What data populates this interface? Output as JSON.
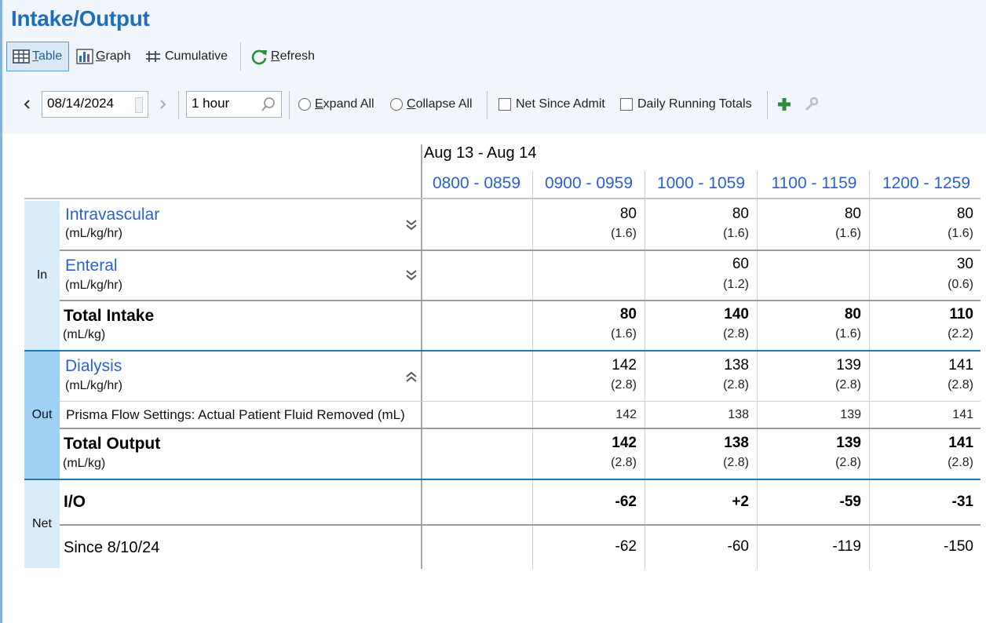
{
  "title": "Intake/Output",
  "toolbar": {
    "table": "Table",
    "graph": "Graph",
    "cumulative": "Cumulative",
    "refresh": "Refresh"
  },
  "filters": {
    "date": "08/14/2024",
    "interval": "1 hour",
    "expand_all": "Expand All",
    "collapse_all": "Collapse All",
    "net_since_admit": "Net Since Admit",
    "daily_running_totals": "Daily Running Totals"
  },
  "table": {
    "date_range": "Aug 13 - Aug 14",
    "columns": [
      "0800 - 0859",
      "0900 - 0959",
      "1000 - 1059",
      "1100 - 1159",
      "1200 - 1259"
    ],
    "sections": {
      "in": "In",
      "out": "Out",
      "net": "Net"
    },
    "rows": {
      "intravascular": {
        "label": "Intravascular",
        "unit": "(mL/kg/hr)",
        "values": [
          "",
          "80",
          "80",
          "80",
          "80"
        ],
        "subs": [
          "",
          "(1.6)",
          "(1.6)",
          "(1.6)",
          "(1.6)"
        ]
      },
      "enteral": {
        "label": "Enteral",
        "unit": "(mL/kg/hr)",
        "values": [
          "",
          "",
          "60",
          "",
          "30"
        ],
        "subs": [
          "",
          "",
          "(1.2)",
          "",
          "(0.6)"
        ]
      },
      "total_intake": {
        "label": "Total Intake",
        "unit": "(mL/kg)",
        "values": [
          "",
          "80",
          "140",
          "80",
          "110"
        ],
        "subs": [
          "",
          "(1.6)",
          "(2.8)",
          "(1.6)",
          "(2.2)"
        ]
      },
      "dialysis": {
        "label": "Dialysis",
        "unit": "(mL/kg/hr)",
        "values": [
          "",
          "142",
          "138",
          "139",
          "141"
        ],
        "subs": [
          "",
          "(2.8)",
          "(2.8)",
          "(2.8)",
          "(2.8)"
        ]
      },
      "prisma": {
        "label": "Prisma Flow Settings: Actual Patient Fluid Removed (mL)",
        "values": [
          "",
          "142",
          "138",
          "139",
          "141"
        ]
      },
      "total_output": {
        "label": "Total Output",
        "unit": "(mL/kg)",
        "values": [
          "",
          "142",
          "138",
          "139",
          "141"
        ],
        "subs": [
          "",
          "(2.8)",
          "(2.8)",
          "(2.8)",
          "(2.8)"
        ]
      },
      "io": {
        "label": "I/O",
        "values": [
          "",
          "-62",
          "+2",
          "-59",
          "-31"
        ]
      },
      "since": {
        "label": "Since 8/10/24",
        "values": [
          "",
          "-62",
          "-60",
          "-119",
          "-150"
        ]
      }
    }
  },
  "colors": {
    "title_blue": "#1e6fb7",
    "link_blue": "#2a5fd6",
    "section_bg": "#d9ecfb",
    "out_section_bg": "#9fd1f5",
    "header_bg": "#f0f6fc",
    "add_green": "#2e8b3d"
  }
}
